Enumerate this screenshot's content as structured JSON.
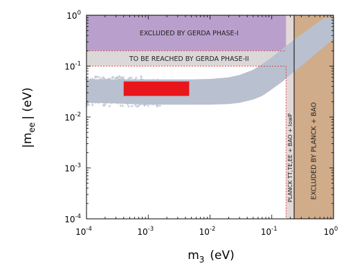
{
  "chart_data": {
    "type": "area",
    "log_x": true,
    "log_y": true,
    "xlim": [
      0.0001,
      1
    ],
    "ylim": [
      0.0001,
      1
    ],
    "xlabel": {
      "main": "m",
      "sub": "3",
      "unit": "(eV)"
    },
    "ylabel": {
      "main": "|m",
      "sub": "ee",
      "unit": "| (eV)"
    },
    "x_ticks": [
      {
        "value": 0.0001,
        "base": "10",
        "exp": "-4"
      },
      {
        "value": 0.001,
        "base": "10",
        "exp": "-3"
      },
      {
        "value": 0.01,
        "base": "10",
        "exp": "-2"
      },
      {
        "value": 0.1,
        "base": "10",
        "exp": "-1"
      },
      {
        "value": 1,
        "base": "10",
        "exp": "0"
      }
    ],
    "y_ticks": [
      {
        "value": 0.0001,
        "base": "10",
        "exp": "-4"
      },
      {
        "value": 0.001,
        "base": "10",
        "exp": "-3"
      },
      {
        "value": 0.01,
        "base": "10",
        "exp": "-2"
      },
      {
        "value": 0.1,
        "base": "10",
        "exp": "-1"
      },
      {
        "value": 1,
        "base": "10",
        "exp": "0"
      }
    ],
    "regions": [
      {
        "id": "gerda-phase-1",
        "label": "EXCLUDED BY GERDA PHASE-I",
        "x_range": [
          0.0001,
          0.21
        ],
        "y_range": [
          0.2,
          1
        ],
        "color": "#b9a0cc"
      },
      {
        "id": "gerda-phase-2",
        "label": "TO BE REACHED BY GERDA PHASE-II",
        "x_range": [
          0.0001,
          0.21
        ],
        "y_range": [
          0.1,
          0.2
        ],
        "color": "#dcd8d8"
      },
      {
        "id": "planck-tt",
        "label": "PLANCK TT,TE,EE + BAO + lowP",
        "x_range": [
          0.17,
          0.23
        ],
        "y_range": [
          0.0001,
          1
        ],
        "color": "#e4d9d9"
      },
      {
        "id": "planck-bao",
        "label": "EXCLUDED BY PLANCK + BAO",
        "x_range": [
          0.23,
          1
        ],
        "y_range": [
          0.0001,
          1
        ],
        "color": "#d1ac8a"
      }
    ],
    "allowed_band": {
      "color": "#b9c0cf",
      "x_start": 0.0001,
      "x_end": 1,
      "upper": [
        {
          "x": 0.0001,
          "y": 0.055
        },
        {
          "x": 0.001,
          "y": 0.055
        },
        {
          "x": 0.005,
          "y": 0.055
        },
        {
          "x": 0.01,
          "y": 0.056
        },
        {
          "x": 0.02,
          "y": 0.06
        },
        {
          "x": 0.03,
          "y": 0.067
        },
        {
          "x": 0.05,
          "y": 0.085
        },
        {
          "x": 0.07,
          "y": 0.11
        },
        {
          "x": 0.1,
          "y": 0.15
        },
        {
          "x": 0.15,
          "y": 0.22
        },
        {
          "x": 0.2,
          "y": 0.29
        },
        {
          "x": 0.3,
          "y": 0.42
        },
        {
          "x": 0.5,
          "y": 0.66
        },
        {
          "x": 0.7,
          "y": 0.88
        },
        {
          "x": 1,
          "y": 0.9
        }
      ],
      "lower": [
        {
          "x": 1,
          "y": 0.34
        },
        {
          "x": 0.7,
          "y": 0.24
        },
        {
          "x": 0.5,
          "y": 0.17
        },
        {
          "x": 0.3,
          "y": 0.1
        },
        {
          "x": 0.2,
          "y": 0.068
        },
        {
          "x": 0.15,
          "y": 0.05
        },
        {
          "x": 0.1,
          "y": 0.035
        },
        {
          "x": 0.07,
          "y": 0.026
        },
        {
          "x": 0.05,
          "y": 0.022
        },
        {
          "x": 0.03,
          "y": 0.019
        },
        {
          "x": 0.02,
          "y": 0.018
        },
        {
          "x": 0.01,
          "y": 0.0175
        },
        {
          "x": 0.005,
          "y": 0.0175
        },
        {
          "x": 0.002,
          "y": 0.0175
        },
        {
          "x": 0.001,
          "y": 0.0175
        },
        {
          "x": 0.0003,
          "y": 0.0185
        },
        {
          "x": 0.0001,
          "y": 0.019
        }
      ]
    },
    "highlight": {
      "x_range": [
        0.0004,
        0.0046
      ],
      "y_range": [
        0.026,
        0.05
      ],
      "color": "#e8161a"
    },
    "dashed_lines": {
      "color": "#e0202a",
      "horizontal_y": [
        0.2,
        0.1
      ],
      "vertical_x": [
        0.17
      ]
    }
  }
}
